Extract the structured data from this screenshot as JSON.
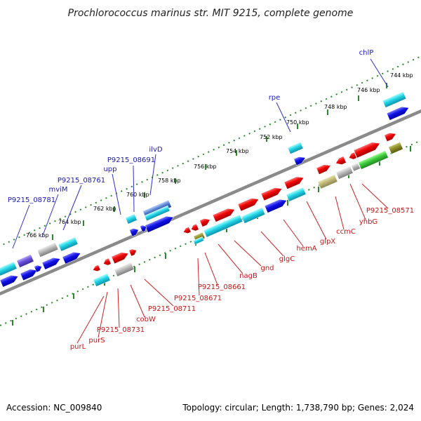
{
  "title": "Prochlorococcus marinus str. MIT 9215, complete genome",
  "footer": {
    "accession": "Accession: NC_009840",
    "summary": "Topology: circular; Length: 1,738,790 bp; Genes: 2,024"
  },
  "colors": {
    "backbone": "#8a8a8a",
    "tick": "#2a8a2a",
    "label_top": "#1a1ab4",
    "label_bottom": "#c81414",
    "leader_top": "#3030d0",
    "leader_bottom": "#d02020"
  },
  "ticks": [
    "744 kbp",
    "746 kbp",
    "748 kbp",
    "750 kbp",
    "752 kbp",
    "754 kbp",
    "756 kbp",
    "758 kbp",
    "760 kbp",
    "762 kbp",
    "764 kbp",
    "766 kbp"
  ],
  "top_labels": [
    "chlP",
    "rpe",
    "ilvD",
    "P9215_08691",
    "upp",
    "P9215_08761",
    "mviM",
    "P9215_08781"
  ],
  "bottom_labels": [
    "P9215_08571",
    "yhbG",
    "ccmC",
    "glpX",
    "hemA",
    "glgC",
    "gnd",
    "nagB",
    "P9215_08661",
    "P9215_08671",
    "P9215_08711",
    "cobW",
    "P9215_08731",
    "purS",
    "purL"
  ]
}
